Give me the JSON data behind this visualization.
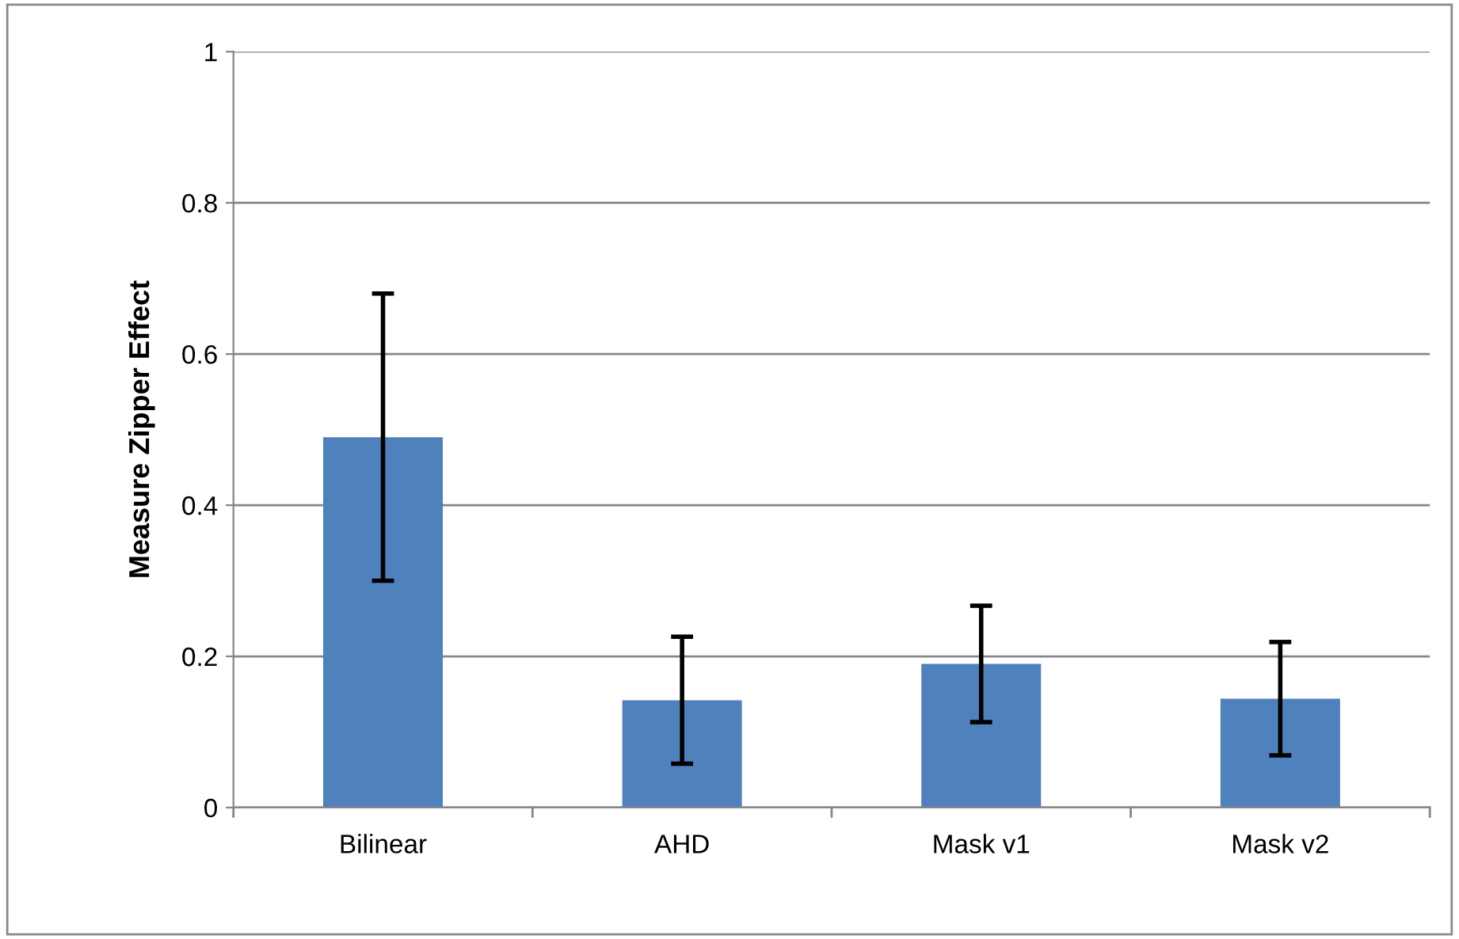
{
  "chart_data": {
    "type": "bar",
    "ylabel": "Measure Zipper Effect",
    "categories": [
      "Bilinear",
      "AHD",
      "Mask v1",
      "Mask v2"
    ],
    "values": [
      0.49,
      0.142,
      0.19,
      0.144
    ],
    "errors": [
      0.19,
      0.084,
      0.077,
      0.075
    ],
    "color": "#4f81bd",
    "ylim": [
      0,
      1
    ],
    "yticks": [
      0,
      0.2,
      0.4,
      0.6,
      0.8,
      1
    ],
    "grid": "y"
  }
}
